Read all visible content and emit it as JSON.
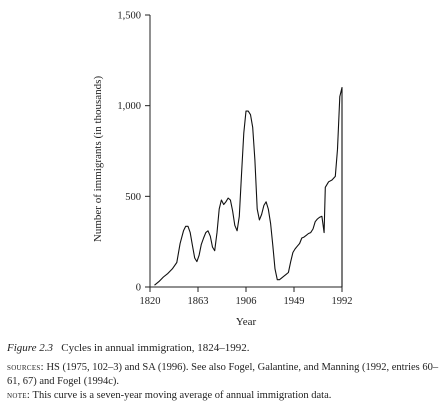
{
  "chart_data": {
    "type": "line",
    "xlabel": "Year",
    "ylabel": "Number of immigrants (in thousands)",
    "xlim": [
      1820,
      1992
    ],
    "ylim": [
      0,
      1500
    ],
    "x_ticks": [
      1820,
      1863,
      1906,
      1949,
      1992
    ],
    "y_ticks": [
      0,
      500,
      1000,
      1500
    ],
    "y_tick_labels": [
      "0",
      "500",
      "1,000",
      "1,500"
    ],
    "grid": false,
    "series": [
      {
        "points": [
          [
            1824,
            10
          ],
          [
            1828,
            30
          ],
          [
            1832,
            55
          ],
          [
            1836,
            75
          ],
          [
            1840,
            100
          ],
          [
            1844,
            135
          ],
          [
            1847,
            240
          ],
          [
            1850,
            310
          ],
          [
            1852,
            335
          ],
          [
            1854,
            335
          ],
          [
            1856,
            300
          ],
          [
            1858,
            230
          ],
          [
            1860,
            160
          ],
          [
            1862,
            140
          ],
          [
            1864,
            175
          ],
          [
            1866,
            235
          ],
          [
            1868,
            270
          ],
          [
            1870,
            300
          ],
          [
            1872,
            310
          ],
          [
            1874,
            280
          ],
          [
            1876,
            220
          ],
          [
            1878,
            200
          ],
          [
            1880,
            300
          ],
          [
            1882,
            430
          ],
          [
            1884,
            480
          ],
          [
            1886,
            455
          ],
          [
            1888,
            470
          ],
          [
            1890,
            490
          ],
          [
            1892,
            480
          ],
          [
            1894,
            420
          ],
          [
            1896,
            340
          ],
          [
            1898,
            310
          ],
          [
            1900,
            390
          ],
          [
            1902,
            620
          ],
          [
            1904,
            850
          ],
          [
            1906,
            970
          ],
          [
            1908,
            970
          ],
          [
            1910,
            950
          ],
          [
            1912,
            880
          ],
          [
            1914,
            700
          ],
          [
            1916,
            430
          ],
          [
            1918,
            370
          ],
          [
            1920,
            400
          ],
          [
            1922,
            450
          ],
          [
            1924,
            470
          ],
          [
            1926,
            430
          ],
          [
            1928,
            350
          ],
          [
            1930,
            230
          ],
          [
            1932,
            100
          ],
          [
            1934,
            40
          ],
          [
            1936,
            40
          ],
          [
            1938,
            50
          ],
          [
            1940,
            60
          ],
          [
            1942,
            70
          ],
          [
            1944,
            80
          ],
          [
            1946,
            140
          ],
          [
            1948,
            190
          ],
          [
            1950,
            210
          ],
          [
            1952,
            225
          ],
          [
            1954,
            240
          ],
          [
            1956,
            270
          ],
          [
            1958,
            275
          ],
          [
            1960,
            285
          ],
          [
            1962,
            295
          ],
          [
            1964,
            300
          ],
          [
            1966,
            320
          ],
          [
            1968,
            360
          ],
          [
            1970,
            375
          ],
          [
            1972,
            385
          ],
          [
            1974,
            390
          ],
          [
            1976,
            300
          ],
          [
            1977,
            550
          ],
          [
            1980,
            580
          ],
          [
            1983,
            590
          ],
          [
            1986,
            610
          ],
          [
            1988,
            760
          ],
          [
            1990,
            1050
          ],
          [
            1992,
            1100
          ]
        ]
      }
    ]
  },
  "caption": {
    "figure_label": "Figure 2.3",
    "title": "Cycles in annual immigration, 1824–1992.",
    "sources_label": "sources:",
    "sources_text": "HS (1975, 102–3) and SA (1996). See also Fogel, Galantine, and Manning (1992, entries 60–61, 67) and Fogel (1994c).",
    "note_label": "note:",
    "note_text": "This curve is a seven-year moving average of annual immigration data."
  }
}
